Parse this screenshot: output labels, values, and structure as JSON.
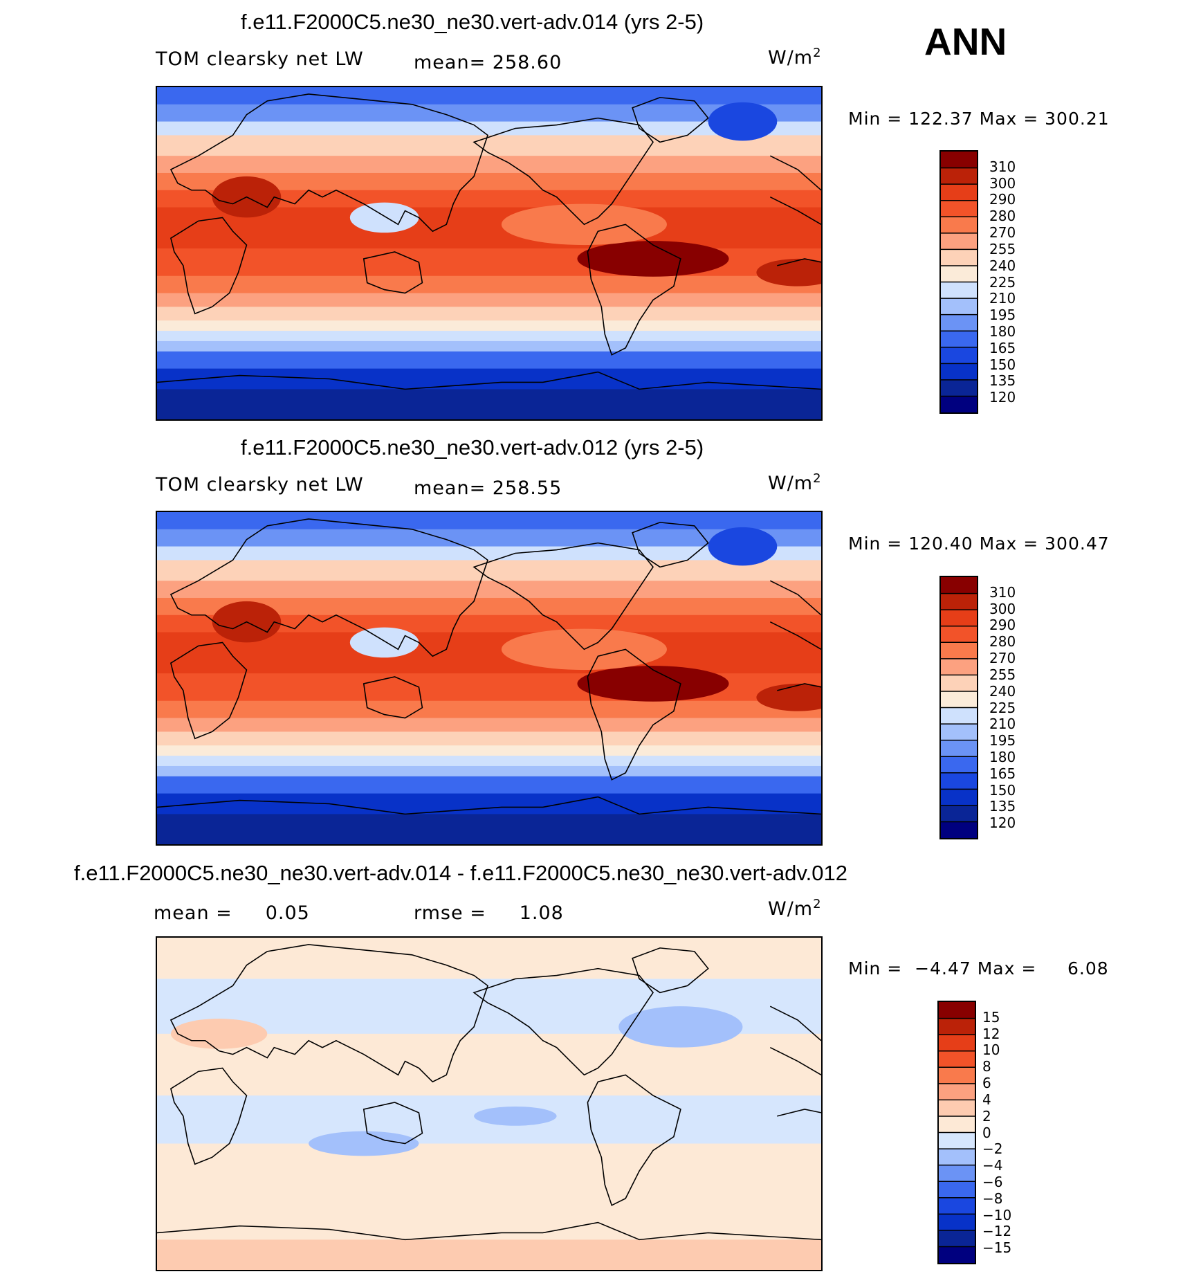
{
  "season": "ANN",
  "colors": {
    "abs": [
      "#00007f",
      "#0a2596",
      "#0832c8",
      "#1a47e0",
      "#3a68ef",
      "#6b93f5",
      "#a3c0fb",
      "#cfe1fd",
      "#fbebd9",
      "#fdd2b8",
      "#fca180",
      "#f97a4c",
      "#f25329",
      "#e63e18",
      "#bb2208",
      "#880000"
    ],
    "diff": [
      "#00007f",
      "#0a2596",
      "#0832c8",
      "#1a47e0",
      "#3a68ef",
      "#6b93f5",
      "#a3c0fb",
      "#d6e6fd",
      "#fde9d6",
      "#fdcbb0",
      "#fca180",
      "#f97a4c",
      "#f25329",
      "#e63e18",
      "#bb2208",
      "#880000"
    ]
  },
  "panels": [
    {
      "case": "f.e11.F2000C5.ne30_ne30.vert-adv.014 (yrs 2-5)",
      "variable": "TOM clearsky net LW",
      "mean_text": "mean= 258.60",
      "units": "W/m",
      "units_sup": "2",
      "minmax": "Min = 122.37 Max = 300.21",
      "levels": [
        "310",
        "300",
        "290",
        "280",
        "270",
        "255",
        "240",
        "225",
        "210",
        "195",
        "180",
        "165",
        "150",
        "135",
        "120"
      ]
    },
    {
      "case": "f.e11.F2000C5.ne30_ne30.vert-adv.012 (yrs 2-5)",
      "variable": "TOM clearsky net LW",
      "mean_text": "mean= 258.55",
      "units": "W/m",
      "units_sup": "2",
      "minmax": "Min = 120.40 Max = 300.47",
      "levels": [
        "310",
        "300",
        "290",
        "280",
        "270",
        "255",
        "240",
        "225",
        "210",
        "195",
        "180",
        "165",
        "150",
        "135",
        "120"
      ]
    },
    {
      "case": "f.e11.F2000C5.ne30_ne30.vert-adv.014 - f.e11.F2000C5.ne30_ne30.vert-adv.012",
      "mean_text": "mean =     0.05",
      "rmse_text": "rmse =     1.08",
      "units": "W/m",
      "units_sup": "2",
      "minmax": "Min =  −4.47 Max =     6.08",
      "levels": [
        "15",
        "12",
        "10",
        "8",
        "6",
        "4",
        "2",
        "0",
        "−2",
        "−4",
        "−6",
        "−8",
        "−10",
        "−12",
        "−15"
      ]
    }
  ]
}
